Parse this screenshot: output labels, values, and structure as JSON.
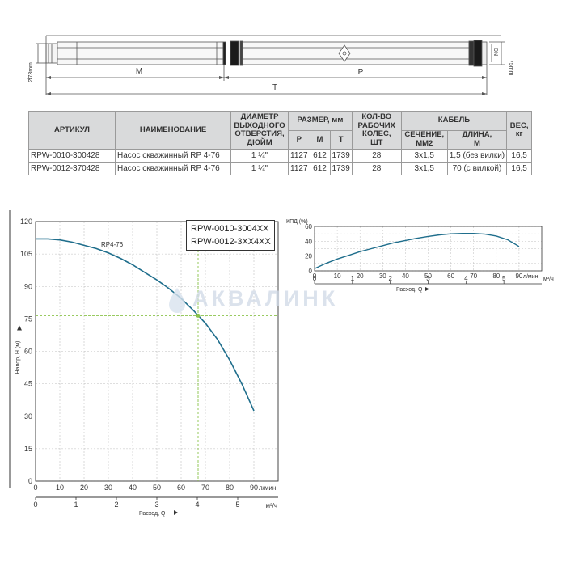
{
  "drawing": {
    "diameter_label": "Ø73mm",
    "height_label": "75mm",
    "dn_label": "DN",
    "m_label": "M",
    "p_label": "P",
    "t_label": "T"
  },
  "table": {
    "headers": {
      "article": "АРТИКУЛ",
      "name": "НАИМЕНОВАНИЕ",
      "outlet": [
        "ДИАМЕТР",
        "ВЫХОДНОГО",
        "ОТВЕРСТИЯ,",
        "ДЮЙМ"
      ],
      "size": "РАЗМЕР, мм",
      "size_p": "P",
      "size_m": "M",
      "size_t": "T",
      "wheels": [
        "КОЛ-ВО",
        "РАБОЧИХ",
        "КОЛЕС,",
        "ШТ"
      ],
      "cable": "КАБЕЛЬ",
      "cable_section": [
        "СЕЧЕНИЕ,",
        "ММ2"
      ],
      "cable_length": [
        "ДЛИНА,",
        "М"
      ],
      "weight": [
        "ВЕС,",
        "кг"
      ]
    },
    "rows": [
      {
        "article": "RPW-0010-300428",
        "name": "Насос скважинный RP 4-76",
        "outlet": "1 ¼\"",
        "p": "1127",
        "m": "612",
        "t": "1739",
        "wheels": "28",
        "section": "3x1,5",
        "length": "1,5 (без вилки)",
        "weight": "16,5"
      },
      {
        "article": "RPW-0012-370428",
        "name": "Насос скважинный RP 4-76",
        "outlet": "1 ¼\"",
        "p": "1127",
        "m": "612",
        "t": "1739",
        "wheels": "28",
        "section": "3x1,5",
        "length": "70 (с вилкой)",
        "weight": "16,5"
      }
    ]
  },
  "watermark": "АКВАЛИНК",
  "legend": {
    "line1": "RPW-0010-3004XX",
    "line2": "RPW-0012-3XX4XX"
  },
  "colors": {
    "curve": "#1f6e8c",
    "grid": "#bfbfbf",
    "marker": "#8bc34a"
  },
  "chart_data": [
    {
      "type": "line",
      "series": [
        {
          "name": "RP4-76",
          "x": [
            0,
            5,
            10,
            15,
            20,
            25,
            30,
            35,
            40,
            45,
            50,
            55,
            60,
            65,
            70,
            75,
            80,
            85,
            90
          ],
          "y": [
            112,
            112,
            111.5,
            110.5,
            109,
            107.5,
            105.5,
            103,
            100,
            96.5,
            93,
            89,
            84.5,
            79,
            73,
            65.5,
            56,
            45,
            32.5
          ]
        }
      ],
      "xlabel": "Расход, Q",
      "ylabel": "Напор, H (м)",
      "x_unit": "л/мин",
      "x2_unit": "м³/ч",
      "xlim": [
        0,
        100
      ],
      "ylim": [
        0,
        120
      ],
      "x_ticks": [
        0,
        10,
        20,
        30,
        40,
        50,
        60,
        70,
        80,
        90
      ],
      "y_ticks": [
        0,
        15,
        30,
        45,
        60,
        75,
        90,
        105,
        120
      ],
      "x2_ticks": [
        0,
        1,
        2,
        3,
        4,
        5
      ],
      "duty_point": {
        "x": 67,
        "y": 76.5
      },
      "grid": true
    },
    {
      "type": "line",
      "series": [
        {
          "x": [
            0,
            5,
            10,
            15,
            20,
            25,
            30,
            35,
            40,
            45,
            50,
            55,
            60,
            65,
            70,
            75,
            80,
            85,
            90
          ],
          "y": [
            3,
            10,
            16,
            21,
            26,
            30,
            34,
            38,
            41,
            44,
            46.5,
            48.5,
            50,
            50.5,
            50.5,
            49.5,
            47,
            42,
            33
          ]
        }
      ],
      "ylabel": "КПД (%)",
      "xlabel": "Расход, Q",
      "x_unit": "л/мин",
      "x2_unit": "м³/ч",
      "xlim": [
        0,
        100
      ],
      "ylim": [
        0,
        60
      ],
      "x_ticks": [
        0,
        10,
        20,
        30,
        40,
        50,
        60,
        70,
        80,
        90
      ],
      "y_ticks": [
        0,
        10,
        20,
        30,
        40,
        50,
        60
      ],
      "y_tick_labels": [
        "0",
        "",
        "20",
        "",
        "40",
        "",
        "60"
      ],
      "x2_ticks": [
        0,
        1,
        2,
        3,
        4,
        5
      ],
      "grid": true
    }
  ]
}
